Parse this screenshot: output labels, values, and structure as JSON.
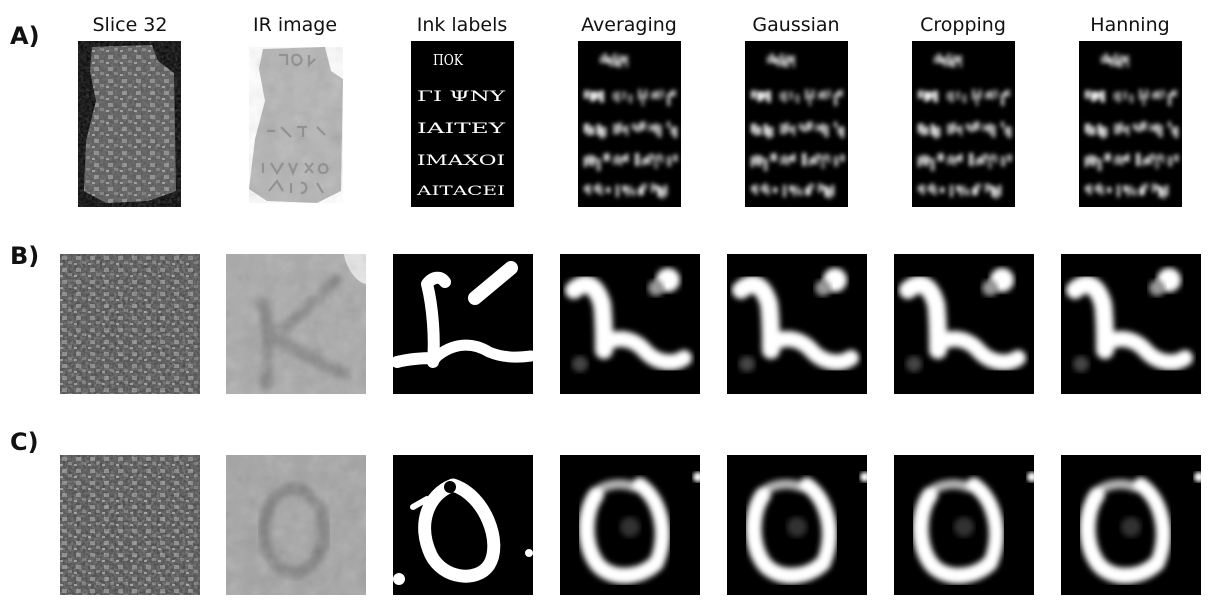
{
  "figure": {
    "row_labels": [
      "A)",
      "B)",
      "C)"
    ],
    "column_titles": [
      "Slice 32",
      "IR image",
      "Ink labels",
      "Averaging",
      "Gaussian",
      "Cropping",
      "Hanning"
    ],
    "ink_label_text": [
      "ΠΟΚ",
      "ΓΙ ΨΝΥ",
      "ΙΑΙΤΕΥ",
      "ΙΜΑΧΟΙ",
      "ΑΙΤΑCΕΙ"
    ]
  }
}
